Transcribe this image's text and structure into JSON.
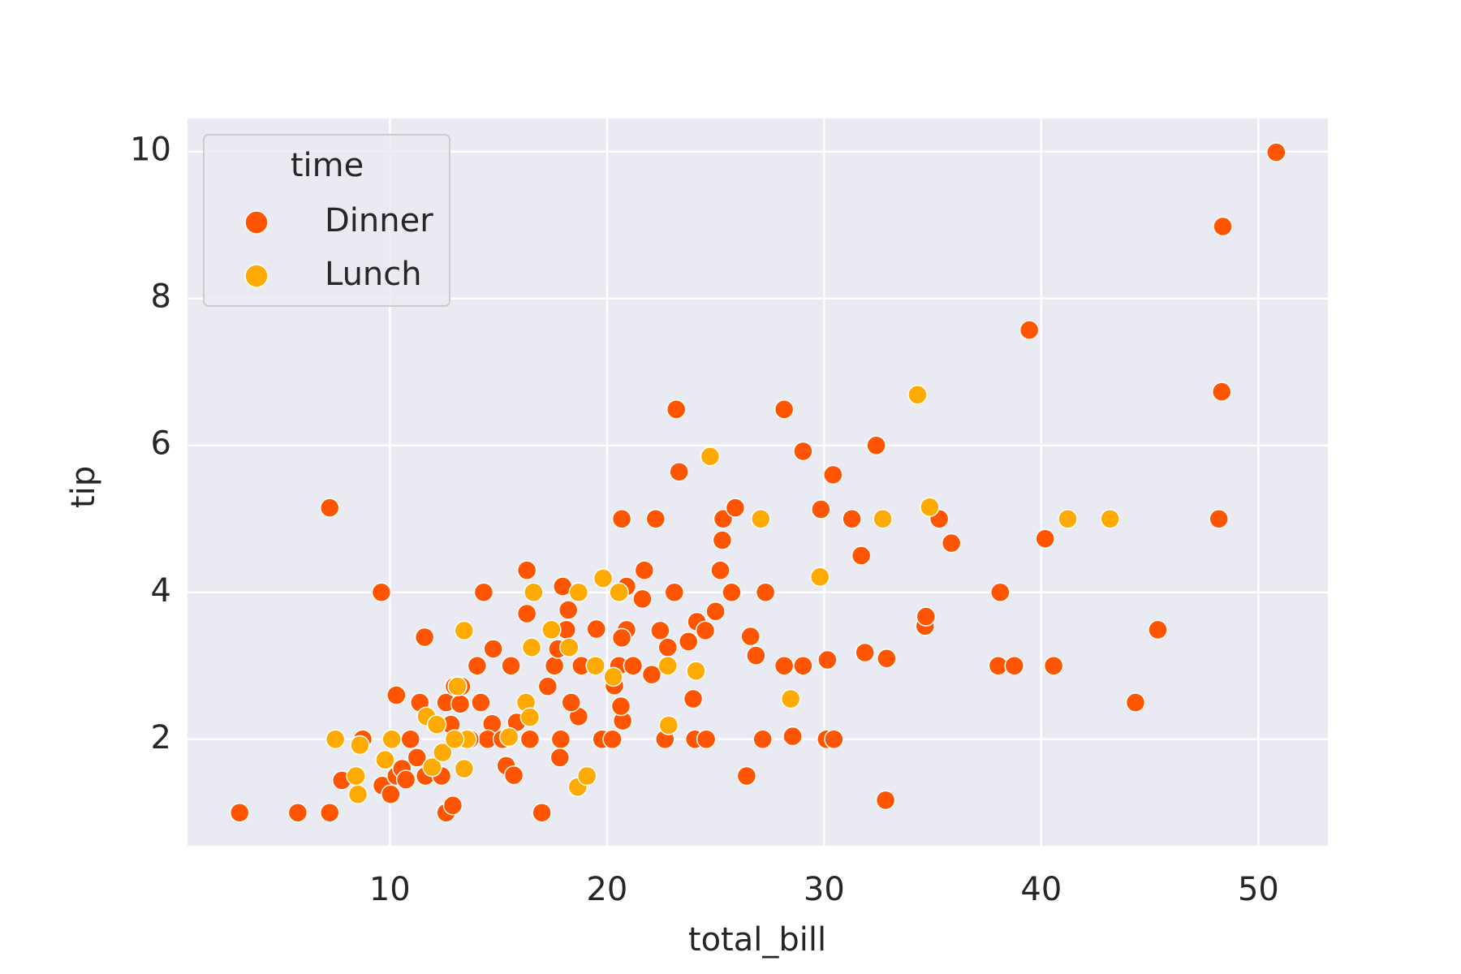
{
  "chart_data": {
    "type": "scatter",
    "x_label": "total_bill",
    "y_label": "tip",
    "xlim": [
      0.68,
      53.2
    ],
    "ylim": [
      0.55,
      10.45
    ],
    "xticks": [
      10,
      20,
      30,
      40,
      50
    ],
    "yticks": [
      2,
      4,
      6,
      8,
      10
    ],
    "grid": true,
    "legend_title": "time",
    "legend_position": "upper left",
    "series": [
      {
        "name": "Dinner",
        "color": "#ff5500",
        "x": [
          3.08,
          5.76,
          7.23,
          7.23,
          9.61,
          11.6,
          10.3,
          11.38,
          12.59,
          12.81,
          12.98,
          13.29,
          14.32,
          14.02,
          14.76,
          14.19,
          14.71,
          14.5,
          15.36,
          15.71,
          15.58,
          16.31,
          16.31,
          17.0,
          17.27,
          17.87,
          17.83,
          17.96,
          18.22,
          18.13,
          18.69,
          18.35,
          18.82,
          19.51,
          19.77,
          20.25,
          20.68,
          20.72,
          20.64,
          20.9,
          20.9,
          21.63,
          21.72,
          22.06,
          22.24,
          22.45,
          22.67,
          22.8,
          23.1,
          23.19,
          23.32,
          23.75,
          23.97,
          24.05,
          24.14,
          24.53,
          24.57,
          25.0,
          25.22,
          25.31,
          25.35,
          25.74,
          25.91,
          26.43,
          26.61,
          26.86,
          27.17,
          27.3,
          28.16,
          28.16,
          28.55,
          29.03,
          29.03,
          29.85,
          30.11,
          30.15,
          30.41,
          30.45,
          31.28,
          31.71,
          31.88,
          32.4,
          32.88,
          32.83,
          34.65,
          34.69,
          35.3,
          35.86,
          38.02,
          38.11,
          38.76,
          39.45,
          40.18,
          40.57,
          44.34,
          45.37,
          48.18,
          48.31,
          48.36,
          50.82,
          7.79,
          8.75,
          9.65,
          10.04,
          10.3,
          10.56,
          10.74,
          10.95,
          11.25,
          11.64,
          12.38,
          12.59,
          12.9,
          13.24,
          13.68,
          15.19,
          15.84,
          16.45,
          17.58,
          17.74,
          20.34,
          20.55,
          21.2,
          20.68
        ],
        "y": [
          1.0,
          1.0,
          1.0,
          5.15,
          4.0,
          3.39,
          2.6,
          2.5,
          2.5,
          2.2,
          2.72,
          2.72,
          4.0,
          3.0,
          3.23,
          2.5,
          2.21,
          2.0,
          1.64,
          1.51,
          3.0,
          4.3,
          3.71,
          1.0,
          2.72,
          2.0,
          1.75,
          4.08,
          3.76,
          3.49,
          2.31,
          2.5,
          3.0,
          3.5,
          2.0,
          2.0,
          5.0,
          2.25,
          2.45,
          3.49,
          4.08,
          3.91,
          4.3,
          2.88,
          5.0,
          3.48,
          2.0,
          3.25,
          4.0,
          6.49,
          5.64,
          3.33,
          2.55,
          2.0,
          3.6,
          3.48,
          2.0,
          3.74,
          4.3,
          4.71,
          5.0,
          4.0,
          5.15,
          1.5,
          3.4,
          3.14,
          2.0,
          4.0,
          6.49,
          3.0,
          2.04,
          5.92,
          3.0,
          5.13,
          2.0,
          3.08,
          5.6,
          2.0,
          5.0,
          4.5,
          3.18,
          6.0,
          3.1,
          1.17,
          3.54,
          3.67,
          5.0,
          4.67,
          3.0,
          4.0,
          3.0,
          7.57,
          4.73,
          3.0,
          2.5,
          3.49,
          5.0,
          6.73,
          8.98,
          9.99,
          1.44,
          2.0,
          1.37,
          1.25,
          1.5,
          1.6,
          1.45,
          2.0,
          1.75,
          1.5,
          1.5,
          1.0,
          1.1,
          2.48,
          2.0,
          2.0,
          2.23,
          2.0,
          3.0,
          3.23,
          2.73,
          3.0,
          3.0,
          3.38
        ]
      },
      {
        "name": "Lunch",
        "color": "#ffaa00",
        "x": [
          7.49,
          8.53,
          8.62,
          8.44,
          9.78,
          10.09,
          11.69,
          12.16,
          11.95,
          12.43,
          13.11,
          13.42,
          13.42,
          13.55,
          12.98,
          15.49,
          16.27,
          16.45,
          16.53,
          16.62,
          17.44,
          18.26,
          18.69,
          18.65,
          19.08,
          19.47,
          19.82,
          20.29,
          20.55,
          22.8,
          22.84,
          24.1,
          24.75,
          27.08,
          28.46,
          29.81,
          32.7,
          34.3,
          34.86,
          41.22,
          43.17
        ],
        "y": [
          2.0,
          1.25,
          1.92,
          1.5,
          1.72,
          2.0,
          2.31,
          2.2,
          1.62,
          1.82,
          2.72,
          3.48,
          1.6,
          2.0,
          2.0,
          2.03,
          2.5,
          2.3,
          3.25,
          4.0,
          3.49,
          3.25,
          4.0,
          1.35,
          1.5,
          3.0,
          4.19,
          2.85,
          4.0,
          3.0,
          2.19,
          2.93,
          5.85,
          5.0,
          2.55,
          4.21,
          5.0,
          6.69,
          5.16,
          5.0,
          5.0
        ]
      }
    ]
  }
}
